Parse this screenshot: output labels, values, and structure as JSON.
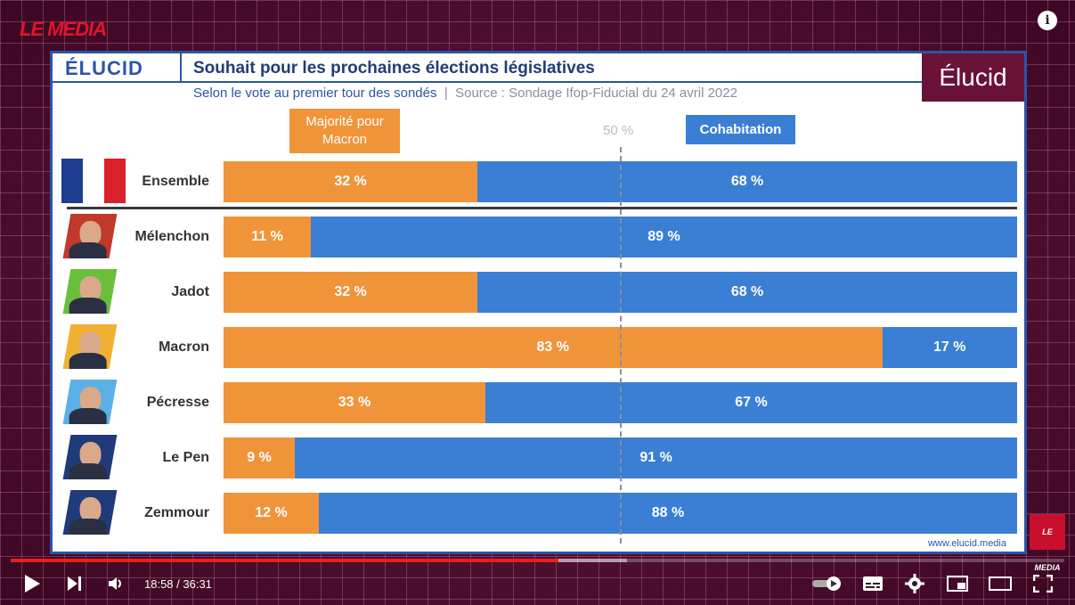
{
  "overlay": {
    "channel_logo": "LE MEDIA",
    "info_icon": "info-icon",
    "corner_logo": "LE MEDIA"
  },
  "card": {
    "brand": "ÉLUCID",
    "title": "Souhait pour les prochaines élections législatives",
    "subtitle_blue": "Selon le vote au premier tour des sondés",
    "subtitle_sep": "|",
    "subtitle_source": "Source : Sondage Ifop-Fiducial du 24 avril 2022",
    "elucid_badge": "Élucid",
    "legend_majority": "Majorité pour Macron",
    "legend_50": "50 %",
    "legend_cohabitation": "Cohabitation",
    "footer": "www.elucid.media"
  },
  "colors": {
    "majority": "#f0943a",
    "cohabitation": "#3a7fd4",
    "brand_blue": "#2b55a8",
    "elucid_badge": "#6a1238"
  },
  "chart_data": {
    "type": "bar",
    "orientation": "horizontal-stacked",
    "title": "Souhait pour les prochaines élections législatives",
    "subtitle": "Selon le vote au premier tour des sondés | Source : Sondage Ifop-Fiducial du 24 avril 2022",
    "categories": [
      "Ensemble",
      "Mélenchon",
      "Jadot",
      "Macron",
      "Pécresse",
      "Le Pen",
      "Zemmour"
    ],
    "series": [
      {
        "name": "Majorité pour Macron",
        "values": [
          32,
          11,
          32,
          83,
          33,
          9,
          12
        ],
        "labels": [
          "32 %",
          "11 %",
          "32 %",
          "83 %",
          "33 %",
          "9 %",
          "12 %"
        ]
      },
      {
        "name": "Cohabitation",
        "values": [
          68,
          89,
          68,
          17,
          67,
          91,
          88
        ],
        "labels": [
          "68 %",
          "89 %",
          "68 %",
          "17 %",
          "67 %",
          "91 %",
          "88 %"
        ]
      }
    ],
    "reference_line": "50 %",
    "xlim": [
      0,
      100
    ],
    "legend": "top"
  },
  "player": {
    "current_time": "18:58",
    "separator": "/",
    "duration": "36:31",
    "time_display": "18:58 / 36:31",
    "progress_fraction": 0.52,
    "buffered_fraction": 0.585,
    "icons": [
      "play-icon",
      "next-icon",
      "volume-icon",
      "autoplay-toggle-icon",
      "subtitles-icon",
      "settings-icon",
      "miniplayer-icon",
      "theater-icon",
      "fullscreen-icon"
    ]
  }
}
